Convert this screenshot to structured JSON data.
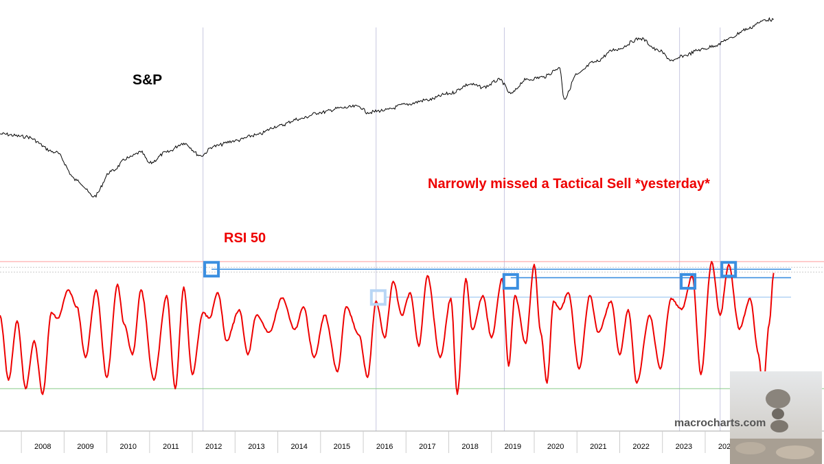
{
  "chart_data": [
    {
      "type": "line",
      "title": "S&P",
      "series": [
        {
          "name": "S&P",
          "color": "#000000",
          "x": [
            2007.0,
            2007.6,
            2008.3,
            2008.8,
            2009.2,
            2009.6,
            2010.0,
            2010.3,
            2010.5,
            2010.9,
            2011.3,
            2011.7,
            2012.0,
            2012.5,
            2013.0,
            2013.5,
            2014.0,
            2014.5,
            2015.0,
            2015.4,
            2015.6,
            2016.0,
            2016.5,
            2017.0,
            2017.5,
            2018.0,
            2018.3,
            2018.7,
            2018.95,
            2019.3,
            2019.7,
            2020.1,
            2020.2,
            2020.5,
            2020.9,
            2021.4,
            2021.99,
            2022.4,
            2022.75,
            2023.0,
            2023.4,
            2023.8,
            2024.0,
            2024.5,
            2024.75,
            2024.9,
            2025.1
          ],
          "values": [
            1500,
            1450,
            1200,
            850,
            700,
            950,
            1120,
            1200,
            1050,
            1200,
            1340,
            1150,
            1290,
            1380,
            1480,
            1650,
            1800,
            1950,
            2060,
            2100,
            1950,
            2000,
            2150,
            2270,
            2450,
            2750,
            2650,
            2900,
            2450,
            2900,
            3000,
            3350,
            2300,
            3100,
            3600,
            4200,
            4800,
            4150,
            3650,
            3900,
            4200,
            4450,
            4750,
            5400,
            5800,
            6050,
            6050
          ]
        }
      ]
    },
    {
      "type": "line",
      "title": "RSI 50",
      "series": [
        {
          "name": "RSI 50",
          "color": "#ee0000",
          "x": [
            2007.0,
            2007.2,
            2007.4,
            2007.6,
            2007.8,
            2008.0,
            2008.2,
            2008.35,
            2008.6,
            2008.8,
            2009.0,
            2009.25,
            2009.5,
            2009.75,
            2009.9,
            2010.1,
            2010.3,
            2010.6,
            2010.9,
            2011.1,
            2011.3,
            2011.5,
            2011.75,
            2011.9,
            2012.1,
            2012.3,
            2012.6,
            2012.8,
            2013.0,
            2013.3,
            2013.6,
            2013.9,
            2014.1,
            2014.35,
            2014.6,
            2014.9,
            2015.1,
            2015.4,
            2015.6,
            2015.8,
            2016.0,
            2016.2,
            2016.4,
            2016.6,
            2016.8,
            2017.0,
            2017.3,
            2017.55,
            2017.7,
            2017.9,
            2018.05,
            2018.3,
            2018.5,
            2018.75,
            2018.9,
            2019.05,
            2019.3,
            2019.5,
            2019.65,
            2019.8,
            2019.95,
            2020.1,
            2020.3,
            2020.55,
            2020.8,
            2021.0,
            2021.3,
            2021.5,
            2021.7,
            2021.9,
            2022.2,
            2022.45,
            2022.7,
            2022.95,
            2023.2,
            2023.4,
            2023.65,
            2023.85,
            2024.05,
            2024.3,
            2024.55,
            2024.75,
            2024.85,
            2025.0,
            2025.1
          ],
          "values": [
            61,
            38,
            59,
            35,
            52,
            33,
            62,
            60,
            70,
            64,
            46,
            70,
            39,
            72,
            58,
            47,
            70,
            38,
            68,
            35,
            71,
            40,
            62,
            60,
            69,
            52,
            63,
            47,
            61,
            55,
            67,
            56,
            64,
            46,
            61,
            41,
            64,
            54,
            39,
            66,
            53,
            73,
            61,
            69,
            50,
            75,
            46,
            67,
            33,
            74,
            56,
            68,
            53,
            74,
            43,
            68,
            51,
            79,
            55,
            37,
            66,
            63,
            69,
            42,
            68,
            55,
            66,
            47,
            63,
            37,
            61,
            42,
            67,
            63,
            75,
            40,
            80,
            61,
            79,
            56,
            67,
            47,
            34,
            58,
            76
          ]
        }
      ],
      "levels": [
        {
          "value": 80,
          "color": "#ff9999",
          "style": "solid"
        },
        {
          "value": 78,
          "color": "#cccccc",
          "style": "dotted"
        },
        {
          "value": 76.3,
          "color": "#cccccc",
          "style": "dotted"
        },
        {
          "value": 35,
          "color": "#88cc88",
          "style": "solid"
        }
      ],
      "signal_levels": [
        {
          "value": 77.3,
          "from": 2011.95,
          "color": "#3b8fe0"
        },
        {
          "value": 74.3,
          "from": 2018.95,
          "color": "#3b8fe0"
        },
        {
          "value": 67.4,
          "from": 2016.0,
          "color": "#b8d6f5"
        }
      ],
      "signals": [
        {
          "x": 2011.95,
          "value": 77.3,
          "color": "#3b8fe0"
        },
        {
          "x": 2018.95,
          "value": 73.0,
          "color": "#3b8fe0"
        },
        {
          "x": 2023.1,
          "value": 73.0,
          "color": "#3b8fe0"
        },
        {
          "x": 2024.05,
          "value": 77.3,
          "color": "#3b8fe0"
        },
        {
          "x": 2015.85,
          "value": 67.3,
          "color": "#b8d6f5"
        }
      ]
    }
  ],
  "x_axis": {
    "range": [
      2007.0,
      2026.28
    ],
    "tick_labels": [
      "2008",
      "2009",
      "2010",
      "2011",
      "2012",
      "2013",
      "2014",
      "2015",
      "2016",
      "2017",
      "2018",
      "2019",
      "2020",
      "2021",
      "2022",
      "2023",
      "2024",
      "2025"
    ],
    "tick_values": [
      2008,
      2009,
      2010,
      2011,
      2012,
      2013,
      2014,
      2015,
      2016,
      2017,
      2018,
      2019,
      2020,
      2021,
      2022,
      2023,
      2024,
      2025
    ]
  },
  "y_ranges": {
    "sp": [
      650,
      6500
    ],
    "rsi": [
      20,
      90
    ]
  },
  "reference_lines_x": [
    2011.75,
    2015.8,
    2018.8,
    2022.9,
    2023.85
  ],
  "annotations": {
    "sp_label": "S&P",
    "note": "Narrowly missed a Tactical Sell *yesterday*",
    "rsi_label": "RSI 50"
  },
  "watermark": "macrocharts.com",
  "colors": {
    "price_line": "#000000",
    "rsi_line": "#ee0000",
    "note_text": "#ee0000",
    "signal_box": "#3b8fe0",
    "vertical_ref": "#c7c7e0"
  }
}
